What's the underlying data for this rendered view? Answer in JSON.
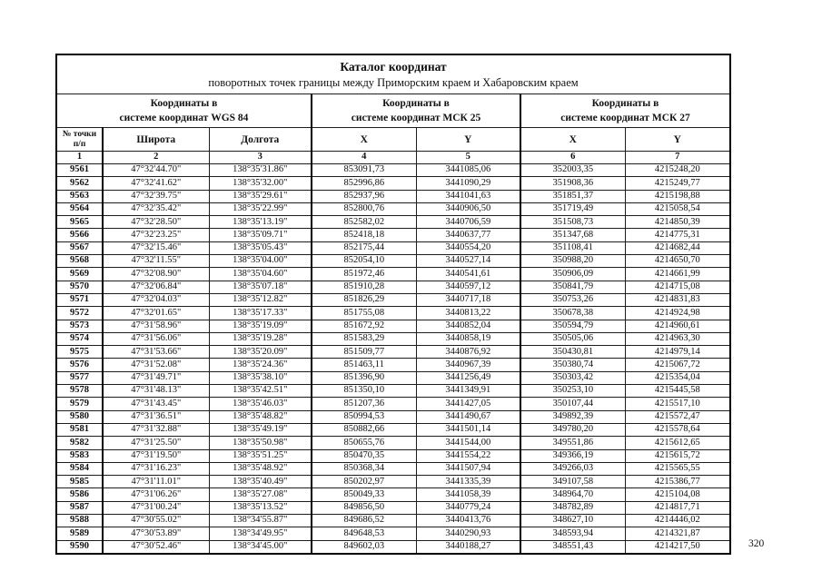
{
  "page_number": "320",
  "table": {
    "title": "Каталог координат",
    "subtitle": "поворотных точек границы между  Приморским краем и Хабаровским краем",
    "groups": [
      {
        "line1": "Координаты в",
        "line2": "системе координат WGS 84"
      },
      {
        "line1": "Координаты в",
        "line2": "системе координат МСК 25"
      },
      {
        "line1": "Координаты в",
        "line2": "системе координат МСК 27"
      }
    ],
    "point_header": {
      "line1": "№ точки",
      "line2": "п/п"
    },
    "columns": [
      "Широта",
      "Долгота",
      "X",
      "Y",
      "X",
      "Y"
    ],
    "column_numbers": [
      "1",
      "2",
      "3",
      "4",
      "5",
      "6",
      "7"
    ],
    "rows": [
      [
        "9561",
        "47°32'44.70\"",
        "138°35'31.86\"",
        "853091,73",
        "3441085,06",
        "352003,35",
        "4215248,20"
      ],
      [
        "9562",
        "47°32'41.62\"",
        "138°35'32.00\"",
        "852996,86",
        "3441090,29",
        "351908,36",
        "4215249,77"
      ],
      [
        "9563",
        "47°32'39.75\"",
        "138°35'29.61\"",
        "852937,96",
        "3441041,63",
        "351851,37",
        "4215198,88"
      ],
      [
        "9564",
        "47°32'35.42\"",
        "138°35'22.99\"",
        "852800,76",
        "3440906,50",
        "351719,49",
        "4215058,54"
      ],
      [
        "9565",
        "47°32'28.50\"",
        "138°35'13.19\"",
        "852582,02",
        "3440706,59",
        "351508,73",
        "4214850,39"
      ],
      [
        "9566",
        "47°32'23.25\"",
        "138°35'09.71\"",
        "852418,18",
        "3440637,77",
        "351347,68",
        "4214775,31"
      ],
      [
        "9567",
        "47°32'15.46\"",
        "138°35'05.43\"",
        "852175,44",
        "3440554,20",
        "351108,41",
        "4214682,44"
      ],
      [
        "9568",
        "47°32'11.55\"",
        "138°35'04.00\"",
        "852054,10",
        "3440527,14",
        "350988,20",
        "4214650,70"
      ],
      [
        "9569",
        "47°32'08.90\"",
        "138°35'04.60\"",
        "851972,46",
        "3440541,61",
        "350906,09",
        "4214661,99"
      ],
      [
        "9570",
        "47°32'06.84\"",
        "138°35'07.18\"",
        "851910,28",
        "3440597,12",
        "350841,79",
        "4214715,08"
      ],
      [
        "9571",
        "47°32'04.03\"",
        "138°35'12.82\"",
        "851826,29",
        "3440717,18",
        "350753,26",
        "4214831,83"
      ],
      [
        "9572",
        "47°32'01.65\"",
        "138°35'17.33\"",
        "851755,08",
        "3440813,22",
        "350678,38",
        "4214924,98"
      ],
      [
        "9573",
        "47°31'58.96\"",
        "138°35'19.09\"",
        "851672,92",
        "3440852,04",
        "350594,79",
        "4214960,61"
      ],
      [
        "9574",
        "47°31'56.06\"",
        "138°35'19.28\"",
        "851583,29",
        "3440858,19",
        "350505,06",
        "4214963,30"
      ],
      [
        "9575",
        "47°31'53.66\"",
        "138°35'20.09\"",
        "851509,77",
        "3440876,92",
        "350430,81",
        "4214979,14"
      ],
      [
        "9576",
        "47°31'52.08\"",
        "138°35'24.36\"",
        "851463,11",
        "3440967,39",
        "350380,74",
        "4215067,72"
      ],
      [
        "9577",
        "47°31'49.71\"",
        "138°35'38.10\"",
        "851396,90",
        "3441256,49",
        "350303,42",
        "4215354,04"
      ],
      [
        "9578",
        "47°31'48.13\"",
        "138°35'42.51\"",
        "851350,10",
        "3441349,91",
        "350253,10",
        "4215445,58"
      ],
      [
        "9579",
        "47°31'43.45\"",
        "138°35'46.03\"",
        "851207,36",
        "3441427,05",
        "350107,44",
        "4215517,10"
      ],
      [
        "9580",
        "47°31'36.51\"",
        "138°35'48.82\"",
        "850994,53",
        "3441490,67",
        "349892,39",
        "4215572,47"
      ],
      [
        "9581",
        "47°31'32.88\"",
        "138°35'49.19\"",
        "850882,66",
        "3441501,14",
        "349780,20",
        "4215578,64"
      ],
      [
        "9582",
        "47°31'25.50\"",
        "138°35'50.98\"",
        "850655,76",
        "3441544,00",
        "349551,86",
        "4215612,65"
      ],
      [
        "9583",
        "47°31'19.50\"",
        "138°35'51.25\"",
        "850470,35",
        "3441554,22",
        "349366,19",
        "4215615,72"
      ],
      [
        "9584",
        "47°31'16.23\"",
        "138°35'48.92\"",
        "850368,34",
        "3441507,94",
        "349266,03",
        "4215565,55"
      ],
      [
        "9585",
        "47°31'11.01\"",
        "138°35'40.49\"",
        "850202,97",
        "3441335,39",
        "349107,58",
        "4215386,77"
      ],
      [
        "9586",
        "47°31'06.26\"",
        "138°35'27.08\"",
        "850049,33",
        "3441058,39",
        "348964,70",
        "4215104,08"
      ],
      [
        "9587",
        "47°31'00.24\"",
        "138°35'13.52\"",
        "849856,50",
        "3440779,24",
        "348782,89",
        "4214817,71"
      ],
      [
        "9588",
        "47°30'55.02\"",
        "138°34'55.87\"",
        "849686,52",
        "3440413,76",
        "348627,10",
        "4214446,02"
      ],
      [
        "9589",
        "47°30'53.89\"",
        "138°34'49.95\"",
        "849648,53",
        "3440290,93",
        "348593,94",
        "4214321,87"
      ],
      [
        "9590",
        "47°30'52.46\"",
        "138°34'45.00\"",
        "849602,03",
        "3440188,27",
        "348551,43",
        "4214217,50"
      ]
    ]
  }
}
